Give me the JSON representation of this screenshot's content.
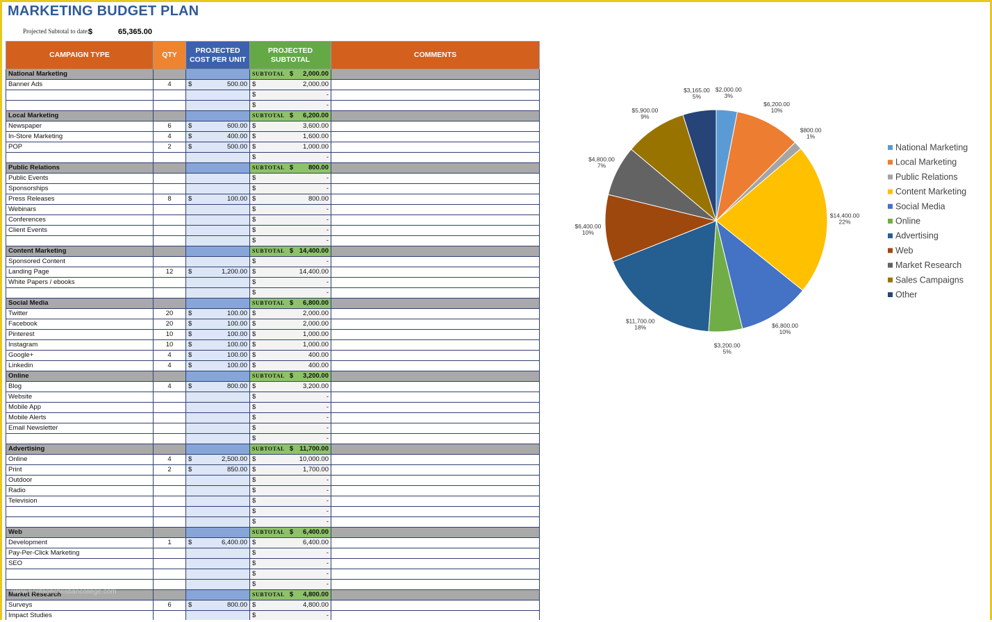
{
  "title": "MARKETING BUDGET PLAN",
  "summary": {
    "label": "Projected Subtotal to date:",
    "currency": "$",
    "value": "65,365.00"
  },
  "headers": {
    "type": "CAMPAIGN TYPE",
    "qty": "QTY",
    "cost": "PROJECTED COST PER UNIT",
    "subtotal": "PROJECTED SUBTOTAL",
    "comments": "COMMENTS"
  },
  "subtotal_tag": "SUBTOTAL",
  "currency": "$",
  "rows": [
    {
      "section": true,
      "name": "National Marketing",
      "subtotal": "2,000.00"
    },
    {
      "name": "Banner Ads",
      "qty": "4",
      "cost": "500.00",
      "subtotal": "2,000.00"
    },
    {
      "name": "",
      "qty": "",
      "cost": "",
      "subtotal": "-"
    },
    {
      "name": "",
      "qty": "",
      "cost": "",
      "subtotal": "-"
    },
    {
      "section": true,
      "name": "Local Marketing",
      "subtotal": "6,200.00"
    },
    {
      "name": "Newspaper",
      "qty": "6",
      "cost": "600.00",
      "subtotal": "3,600.00"
    },
    {
      "name": "In-Store Marketing",
      "qty": "4",
      "cost": "400.00",
      "subtotal": "1,600.00"
    },
    {
      "name": "POP",
      "qty": "2",
      "cost": "500.00",
      "subtotal": "1,000.00"
    },
    {
      "name": "",
      "qty": "",
      "cost": "",
      "subtotal": "-"
    },
    {
      "section": true,
      "name": "Public Relations",
      "subtotal": "800.00"
    },
    {
      "name": "Public Events",
      "qty": "",
      "cost": "",
      "subtotal": "-"
    },
    {
      "name": "Sponsorships",
      "qty": "",
      "cost": "",
      "subtotal": "-"
    },
    {
      "name": "Press Releases",
      "qty": "8",
      "cost": "100.00",
      "subtotal": "800.00"
    },
    {
      "name": "Webinars",
      "qty": "",
      "cost": "",
      "subtotal": "-"
    },
    {
      "name": "Conferences",
      "qty": "",
      "cost": "",
      "subtotal": "-"
    },
    {
      "name": "Client Events",
      "qty": "",
      "cost": "",
      "subtotal": "-"
    },
    {
      "name": "",
      "qty": "",
      "cost": "",
      "subtotal": "-"
    },
    {
      "section": true,
      "name": "Content Marketing",
      "subtotal": "14,400.00"
    },
    {
      "name": "Sponsored Content",
      "qty": "",
      "cost": "",
      "subtotal": "-"
    },
    {
      "name": "Landing Page",
      "qty": "12",
      "cost": "1,200.00",
      "subtotal": "14,400.00"
    },
    {
      "name": "White Papers / ebooks",
      "qty": "",
      "cost": "",
      "subtotal": "-"
    },
    {
      "name": "",
      "qty": "",
      "cost": "",
      "subtotal": "-"
    },
    {
      "section": true,
      "name": "Social Media",
      "subtotal": "6,800.00"
    },
    {
      "name": "Twitter",
      "qty": "20",
      "cost": "100.00",
      "subtotal": "2,000.00"
    },
    {
      "name": "Facebook",
      "qty": "20",
      "cost": "100.00",
      "subtotal": "2,000.00"
    },
    {
      "name": "Pinterest",
      "qty": "10",
      "cost": "100.00",
      "subtotal": "1,000.00"
    },
    {
      "name": "Instagram",
      "qty": "10",
      "cost": "100.00",
      "subtotal": "1,000.00"
    },
    {
      "name": "Google+",
      "qty": "4",
      "cost": "100.00",
      "subtotal": "400.00"
    },
    {
      "name": "Linkedin",
      "qty": "4",
      "cost": "100.00",
      "subtotal": "400.00"
    },
    {
      "section": true,
      "name": "Online",
      "subtotal": "3,200.00"
    },
    {
      "name": "Blog",
      "qty": "4",
      "cost": "800.00",
      "subtotal": "3,200.00"
    },
    {
      "name": "Website",
      "qty": "",
      "cost": "",
      "subtotal": "-"
    },
    {
      "name": "Mobile App",
      "qty": "",
      "cost": "",
      "subtotal": "-"
    },
    {
      "name": "Mobile Alerts",
      "qty": "",
      "cost": "",
      "subtotal": "-"
    },
    {
      "name": "Email Newsletter",
      "qty": "",
      "cost": "",
      "subtotal": "-"
    },
    {
      "name": "",
      "qty": "",
      "cost": "",
      "subtotal": "-"
    },
    {
      "section": true,
      "name": "Advertising",
      "subtotal": "11,700.00"
    },
    {
      "name": "Online",
      "qty": "4",
      "cost": "2,500.00",
      "subtotal": "10,000.00"
    },
    {
      "name": "Print",
      "qty": "2",
      "cost": "850.00",
      "subtotal": "1,700.00"
    },
    {
      "name": "Outdoor",
      "qty": "",
      "cost": "",
      "subtotal": "-"
    },
    {
      "name": "Radio",
      "qty": "",
      "cost": "",
      "subtotal": "-"
    },
    {
      "name": "Television",
      "qty": "",
      "cost": "",
      "subtotal": "-"
    },
    {
      "name": "",
      "qty": "",
      "cost": "",
      "subtotal": "-"
    },
    {
      "name": "",
      "qty": "",
      "cost": "",
      "subtotal": "-"
    },
    {
      "section": true,
      "name": "Web",
      "subtotal": "6,400.00"
    },
    {
      "name": "Development",
      "qty": "1",
      "cost": "6,400.00",
      "subtotal": "6,400.00"
    },
    {
      "name": "Pay-Per-Click Marketing",
      "qty": "",
      "cost": "",
      "subtotal": "-"
    },
    {
      "name": "SEO",
      "qty": "",
      "cost": "",
      "subtotal": "-"
    },
    {
      "name": "",
      "qty": "",
      "cost": "",
      "subtotal": "-"
    },
    {
      "name": "",
      "qty": "",
      "cost": "",
      "subtotal": "-"
    },
    {
      "section": true,
      "name": "Market Research",
      "subtotal": "4,800.00"
    },
    {
      "name": "Surveys",
      "qty": "6",
      "cost": "800.00",
      "subtotal": "4,800.00"
    },
    {
      "name": "Impact Studies",
      "qty": "",
      "cost": "",
      "subtotal": "-"
    }
  ],
  "watermark": "www.heritagechristiancollege.com",
  "chart_data": {
    "type": "pie",
    "categories": [
      "National Marketing",
      "Local Marketing",
      "Public Relations",
      "Content Marketing",
      "Social Media",
      "Online",
      "Advertising",
      "Web",
      "Market Research",
      "Sales Campaigns",
      "Other"
    ],
    "values": [
      2000,
      6200,
      800,
      14400,
      6800,
      3200,
      11700,
      6400,
      4800,
      5900,
      3165
    ],
    "value_labels": [
      "$2,000.00",
      "$6,200.00",
      "$800.00",
      "$14,400.00",
      "$6,800.00",
      "$3,200.00",
      "$11,700.00",
      "$6,400.00",
      "$4,800.00",
      "$5,900.00",
      "$3,165.00"
    ],
    "percent_labels": [
      "3%",
      "10%",
      "1%",
      "22%",
      "10%",
      "5%",
      "18%",
      "10%",
      "7%",
      "9%",
      "5%"
    ],
    "colors": [
      "#5b9bd5",
      "#ed7d31",
      "#a5a5a5",
      "#ffc000",
      "#4472c4",
      "#70ad47",
      "#255e91",
      "#9e480e",
      "#636363",
      "#997300",
      "#264478"
    ],
    "legend_position": "right"
  }
}
